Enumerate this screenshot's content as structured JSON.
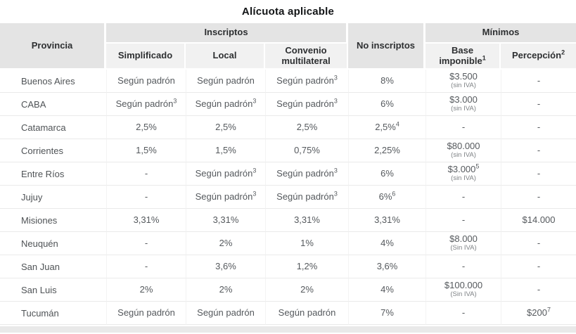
{
  "title": "Alícuota aplicable",
  "colors": {
    "header_bg": "#e4e4e4",
    "subheader_bg": "#f1f1f1",
    "header_text": "#2d2f31",
    "body_text": "#55595d",
    "note_text": "#7e8285",
    "row_divider": "#eaeaea",
    "footer_bar_bg": "#e9e9e9"
  },
  "table": {
    "header": {
      "provincia": "Provincia",
      "inscriptos": "Inscriptos",
      "no_inscriptos": "No inscriptos",
      "minimos": "Mínimos",
      "sub": [
        {
          "label": "Simplificado",
          "sup": ""
        },
        {
          "label": "Local",
          "sup": ""
        },
        {
          "label": "Convenio multilateral",
          "sup": ""
        },
        {
          "label": "Base imponible",
          "sup": "1"
        },
        {
          "label": "Percepción",
          "sup": "2"
        }
      ]
    },
    "rows": [
      {
        "provincia": "Buenos Aires",
        "cells": [
          {
            "text": "Según padrón"
          },
          {
            "text": "Según padrón"
          },
          {
            "text": "Según padrón",
            "sup": "3"
          },
          {
            "text": "8%"
          },
          {
            "text": "$3.500",
            "note": "(sin IVA)"
          },
          {
            "text": "-"
          }
        ]
      },
      {
        "provincia": "CABA",
        "cells": [
          {
            "text": "Según padrón",
            "sup": "3"
          },
          {
            "text": "Según padrón",
            "sup": "3"
          },
          {
            "text": "Según padrón",
            "sup": "3"
          },
          {
            "text": "6%"
          },
          {
            "text": "$3.000",
            "note": "(sin IVA)"
          },
          {
            "text": "-"
          }
        ]
      },
      {
        "provincia": "Catamarca",
        "cells": [
          {
            "text": "2,5%"
          },
          {
            "text": "2,5%"
          },
          {
            "text": "2,5%"
          },
          {
            "text": "2,5%",
            "sup": "4"
          },
          {
            "text": "-"
          },
          {
            "text": "-"
          }
        ]
      },
      {
        "provincia": "Corrientes",
        "cells": [
          {
            "text": "1,5%"
          },
          {
            "text": "1,5%"
          },
          {
            "text": "0,75%"
          },
          {
            "text": "2,25%"
          },
          {
            "text": "$80.000",
            "note": "(sin IVA)"
          },
          {
            "text": "-"
          }
        ]
      },
      {
        "provincia": "Entre Ríos",
        "cells": [
          {
            "text": "-"
          },
          {
            "text": "Según padrón",
            "sup": "3"
          },
          {
            "text": "Según padrón",
            "sup": "3"
          },
          {
            "text": "6%"
          },
          {
            "text": "$3.000",
            "sup": "5",
            "note": "(sin IVA)"
          },
          {
            "text": "-"
          }
        ]
      },
      {
        "provincia": "Jujuy",
        "cells": [
          {
            "text": "-"
          },
          {
            "text": "Según padrón",
            "sup": "3"
          },
          {
            "text": "Según padrón",
            "sup": "3"
          },
          {
            "text": "6%",
            "sup": "6"
          },
          {
            "text": "-"
          },
          {
            "text": "-"
          }
        ]
      },
      {
        "provincia": "Misiones",
        "cells": [
          {
            "text": "3,31%"
          },
          {
            "text": "3,31%"
          },
          {
            "text": "3,31%"
          },
          {
            "text": "3,31%"
          },
          {
            "text": "-"
          },
          {
            "text": "$14.000"
          }
        ]
      },
      {
        "provincia": "Neuquén",
        "cells": [
          {
            "text": "-"
          },
          {
            "text": "2%"
          },
          {
            "text": "1%"
          },
          {
            "text": "4%"
          },
          {
            "text": "$8.000",
            "note": "(Sin IVA)"
          },
          {
            "text": "-"
          }
        ]
      },
      {
        "provincia": "San Juan",
        "cells": [
          {
            "text": "-"
          },
          {
            "text": "3,6%"
          },
          {
            "text": "1,2%"
          },
          {
            "text": "3,6%"
          },
          {
            "text": "-"
          },
          {
            "text": "-"
          }
        ]
      },
      {
        "provincia": "San Luis",
        "cells": [
          {
            "text": "2%"
          },
          {
            "text": "2%"
          },
          {
            "text": "2%"
          },
          {
            "text": "4%"
          },
          {
            "text": "$100.000",
            "note": "(Sin IVA)"
          },
          {
            "text": "-"
          }
        ]
      },
      {
        "provincia": "Tucumán",
        "cells": [
          {
            "text": "Según padrón"
          },
          {
            "text": "Según padrón"
          },
          {
            "text": "Según padrón"
          },
          {
            "text": "7%"
          },
          {
            "text": "-"
          },
          {
            "text": "$200",
            "sup": "7"
          }
        ]
      }
    ]
  },
  "chart_data": {
    "type": "table",
    "title": "Alícuota aplicable",
    "columns": [
      "Provincia",
      "Inscriptos / Simplificado",
      "Inscriptos / Local",
      "Inscriptos / Convenio multilateral",
      "No inscriptos",
      "Mínimos / Base imponible¹",
      "Mínimos / Percepción²"
    ],
    "rows": [
      [
        "Buenos Aires",
        "Según padrón",
        "Según padrón",
        "Según padrón³",
        "8%",
        "$3.500 (sin IVA)",
        "-"
      ],
      [
        "CABA",
        "Según padrón³",
        "Según padrón³",
        "Según padrón³",
        "6%",
        "$3.000 (sin IVA)",
        "-"
      ],
      [
        "Catamarca",
        "2,5%",
        "2,5%",
        "2,5%",
        "2,5%⁴",
        "-",
        "-"
      ],
      [
        "Corrientes",
        "1,5%",
        "1,5%",
        "0,75%",
        "2,25%",
        "$80.000 (sin IVA)",
        "-"
      ],
      [
        "Entre Ríos",
        "-",
        "Según padrón³",
        "Según padrón³",
        "6%",
        "$3.000⁵ (sin IVA)",
        "-"
      ],
      [
        "Jujuy",
        "-",
        "Según padrón³",
        "Según padrón³",
        "6%⁶",
        "-",
        "-"
      ],
      [
        "Misiones",
        "3,31%",
        "3,31%",
        "3,31%",
        "3,31%",
        "-",
        "$14.000"
      ],
      [
        "Neuquén",
        "-",
        "2%",
        "1%",
        "4%",
        "$8.000 (Sin IVA)",
        "-"
      ],
      [
        "San Juan",
        "-",
        "3,6%",
        "1,2%",
        "3,6%",
        "-",
        "-"
      ],
      [
        "San Luis",
        "2%",
        "2%",
        "2%",
        "4%",
        "$100.000 (Sin IVA)",
        "-"
      ],
      [
        "Tucumán",
        "Según padrón",
        "Según padrón",
        "Según padrón",
        "7%",
        "-",
        "$200⁷"
      ]
    ]
  }
}
